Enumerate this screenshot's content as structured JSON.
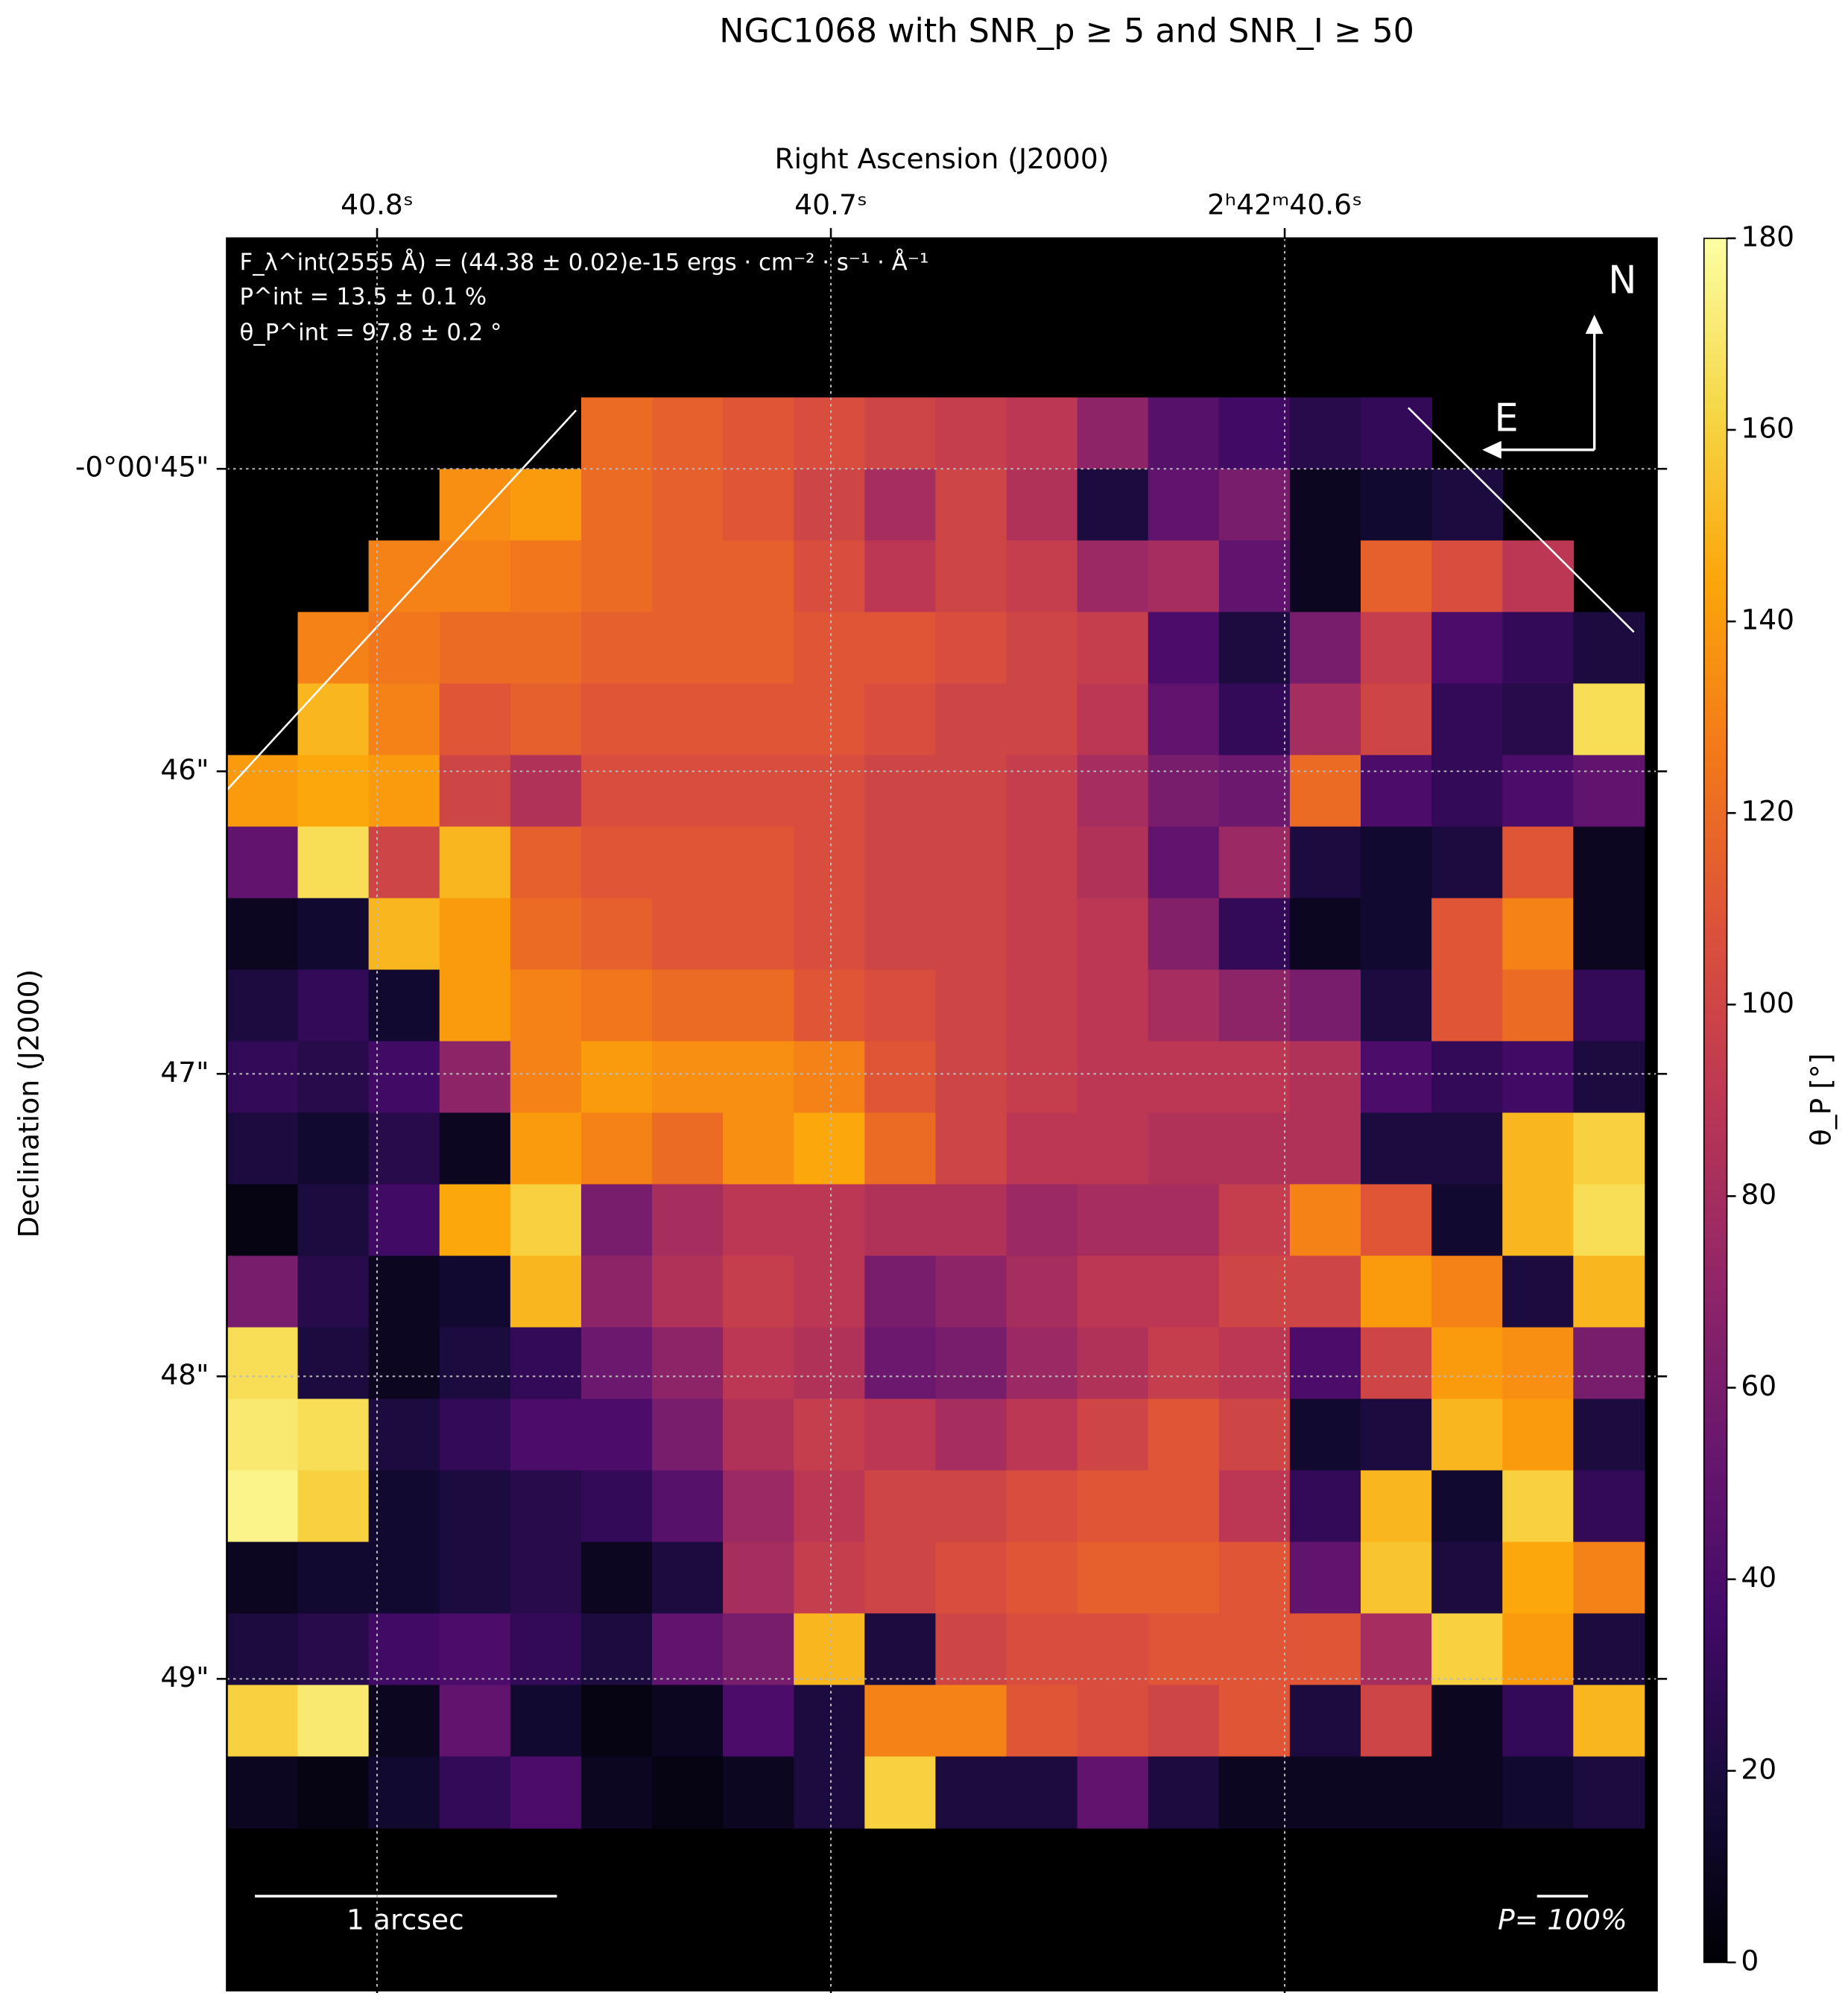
{
  "chart_data": {
    "type": "image",
    "title": "NGC1068 with SNR_p ≥ 5 and SNR_I ≥ 50",
    "x_label": "Right Ascension (J2000)",
    "y_label": "Declination (J2000)",
    "colorbar_label": "θ_P [°]",
    "colormap": "inferno",
    "annotations": [
      "F_λ^int(2555 Å) = (44.38 ± 0.02)e-15 ergs · cm⁻² · s⁻¹ · Å⁻¹",
      "P^int = 13.5 ± 0.1 %",
      "θ_P^int = 97.8 ± 0.2 °"
    ],
    "compass": [
      "N",
      "E"
    ],
    "scale_label": "1 arcsec",
    "vector_scale_label": "P= 100%",
    "xlim": [
      40.8331,
      40.518
    ],
    "ylim": [
      50.03,
      44.238
    ],
    "xticks": [
      {
        "value": 40.8,
        "label": "40.8ˢ"
      },
      {
        "value": 40.7,
        "label": "40.7ˢ"
      },
      {
        "value": 40.6,
        "label": "2ʰ42ᵐ40.6ˢ"
      }
    ],
    "yticks": [
      {
        "value": 45,
        "label": "-0°00'45\""
      },
      {
        "value": 46,
        "label": "46\""
      },
      {
        "value": 47,
        "label": "47\""
      },
      {
        "value": 48,
        "label": "48\""
      },
      {
        "value": 49,
        "label": "49\""
      }
    ],
    "extent": [
      40.8331,
      40.5208,
      44.764,
      49.493
    ],
    "clim": [
      0,
      180
    ],
    "cticks": [
      0,
      20,
      40,
      60,
      80,
      100,
      120,
      140,
      160,
      180
    ],
    "grid": true,
    "z": [
      [
        null,
        null,
        null,
        null,
        null,
        120,
        115,
        110,
        105,
        100,
        95,
        90,
        70,
        45,
        35,
        25,
        30,
        null,
        null,
        null
      ],
      [
        null,
        null,
        null,
        135,
        140,
        120,
        115,
        110,
        100,
        80,
        100,
        85,
        20,
        50,
        60,
        10,
        15,
        20,
        null,
        null
      ],
      [
        null,
        null,
        130,
        130,
        125,
        120,
        115,
        115,
        105,
        90,
        100,
        95,
        75,
        80,
        50,
        10,
        115,
        105,
        90,
        null
      ],
      [
        null,
        130,
        125,
        120,
        120,
        115,
        115,
        115,
        110,
        110,
        105,
        100,
        95,
        40,
        20,
        60,
        95,
        40,
        30,
        20
      ],
      [
        null,
        150,
        130,
        110,
        115,
        110,
        110,
        110,
        110,
        105,
        100,
        100,
        90,
        50,
        30,
        80,
        100,
        30,
        25,
        165
      ],
      [
        140,
        145,
        140,
        100,
        85,
        105,
        105,
        105,
        105,
        100,
        100,
        95,
        80,
        60,
        55,
        120,
        40,
        30,
        40,
        50
      ],
      [
        50,
        165,
        100,
        150,
        115,
        110,
        110,
        110,
        105,
        100,
        100,
        95,
        85,
        50,
        75,
        20,
        15,
        20,
        110,
        10
      ],
      [
        10,
        15,
        150,
        140,
        120,
        115,
        110,
        110,
        105,
        100,
        100,
        95,
        90,
        65,
        30,
        10,
        15,
        110,
        130,
        10
      ],
      [
        20,
        30,
        15,
        140,
        130,
        125,
        120,
        120,
        110,
        105,
        100,
        95,
        90,
        80,
        70,
        60,
        20,
        110,
        120,
        30
      ],
      [
        30,
        25,
        35,
        70,
        130,
        140,
        135,
        135,
        130,
        110,
        100,
        95,
        90,
        90,
        90,
        85,
        40,
        30,
        35,
        20
      ],
      [
        20,
        15,
        25,
        10,
        140,
        130,
        120,
        135,
        145,
        120,
        100,
        90,
        90,
        85,
        85,
        85,
        20,
        20,
        150,
        160
      ],
      [
        5,
        20,
        35,
        145,
        160,
        60,
        80,
        90,
        90,
        85,
        85,
        75,
        80,
        80,
        95,
        130,
        110,
        15,
        150,
        165
      ],
      [
        60,
        25,
        10,
        15,
        150,
        70,
        85,
        95,
        90,
        60,
        70,
        80,
        90,
        90,
        100,
        100,
        140,
        130,
        20,
        150
      ],
      [
        165,
        20,
        10,
        20,
        30,
        55,
        70,
        90,
        85,
        55,
        60,
        75,
        85,
        95,
        90,
        40,
        100,
        140,
        135,
        60
      ],
      [
        170,
        165,
        20,
        30,
        40,
        40,
        60,
        85,
        95,
        90,
        80,
        90,
        100,
        110,
        100,
        15,
        20,
        150,
        140,
        20
      ],
      [
        175,
        160,
        15,
        20,
        25,
        30,
        45,
        75,
        90,
        100,
        100,
        105,
        110,
        110,
        90,
        30,
        150,
        15,
        160,
        30
      ],
      [
        10,
        15,
        15,
        20,
        25,
        10,
        20,
        80,
        95,
        100,
        105,
        110,
        115,
        115,
        110,
        50,
        155,
        20,
        145,
        130
      ],
      [
        20,
        25,
        35,
        40,
        30,
        20,
        50,
        60,
        150,
        20,
        100,
        105,
        105,
        110,
        110,
        110,
        80,
        160,
        140,
        20
      ],
      [
        160,
        170,
        10,
        50,
        15,
        5,
        10,
        40,
        20,
        130,
        130,
        110,
        105,
        100,
        110,
        20,
        100,
        10,
        30,
        150
      ],
      [
        10,
        5,
        15,
        30,
        40,
        10,
        5,
        10,
        20,
        160,
        20,
        20,
        50,
        20,
        10,
        10,
        10,
        10,
        15,
        20
      ]
    ]
  }
}
